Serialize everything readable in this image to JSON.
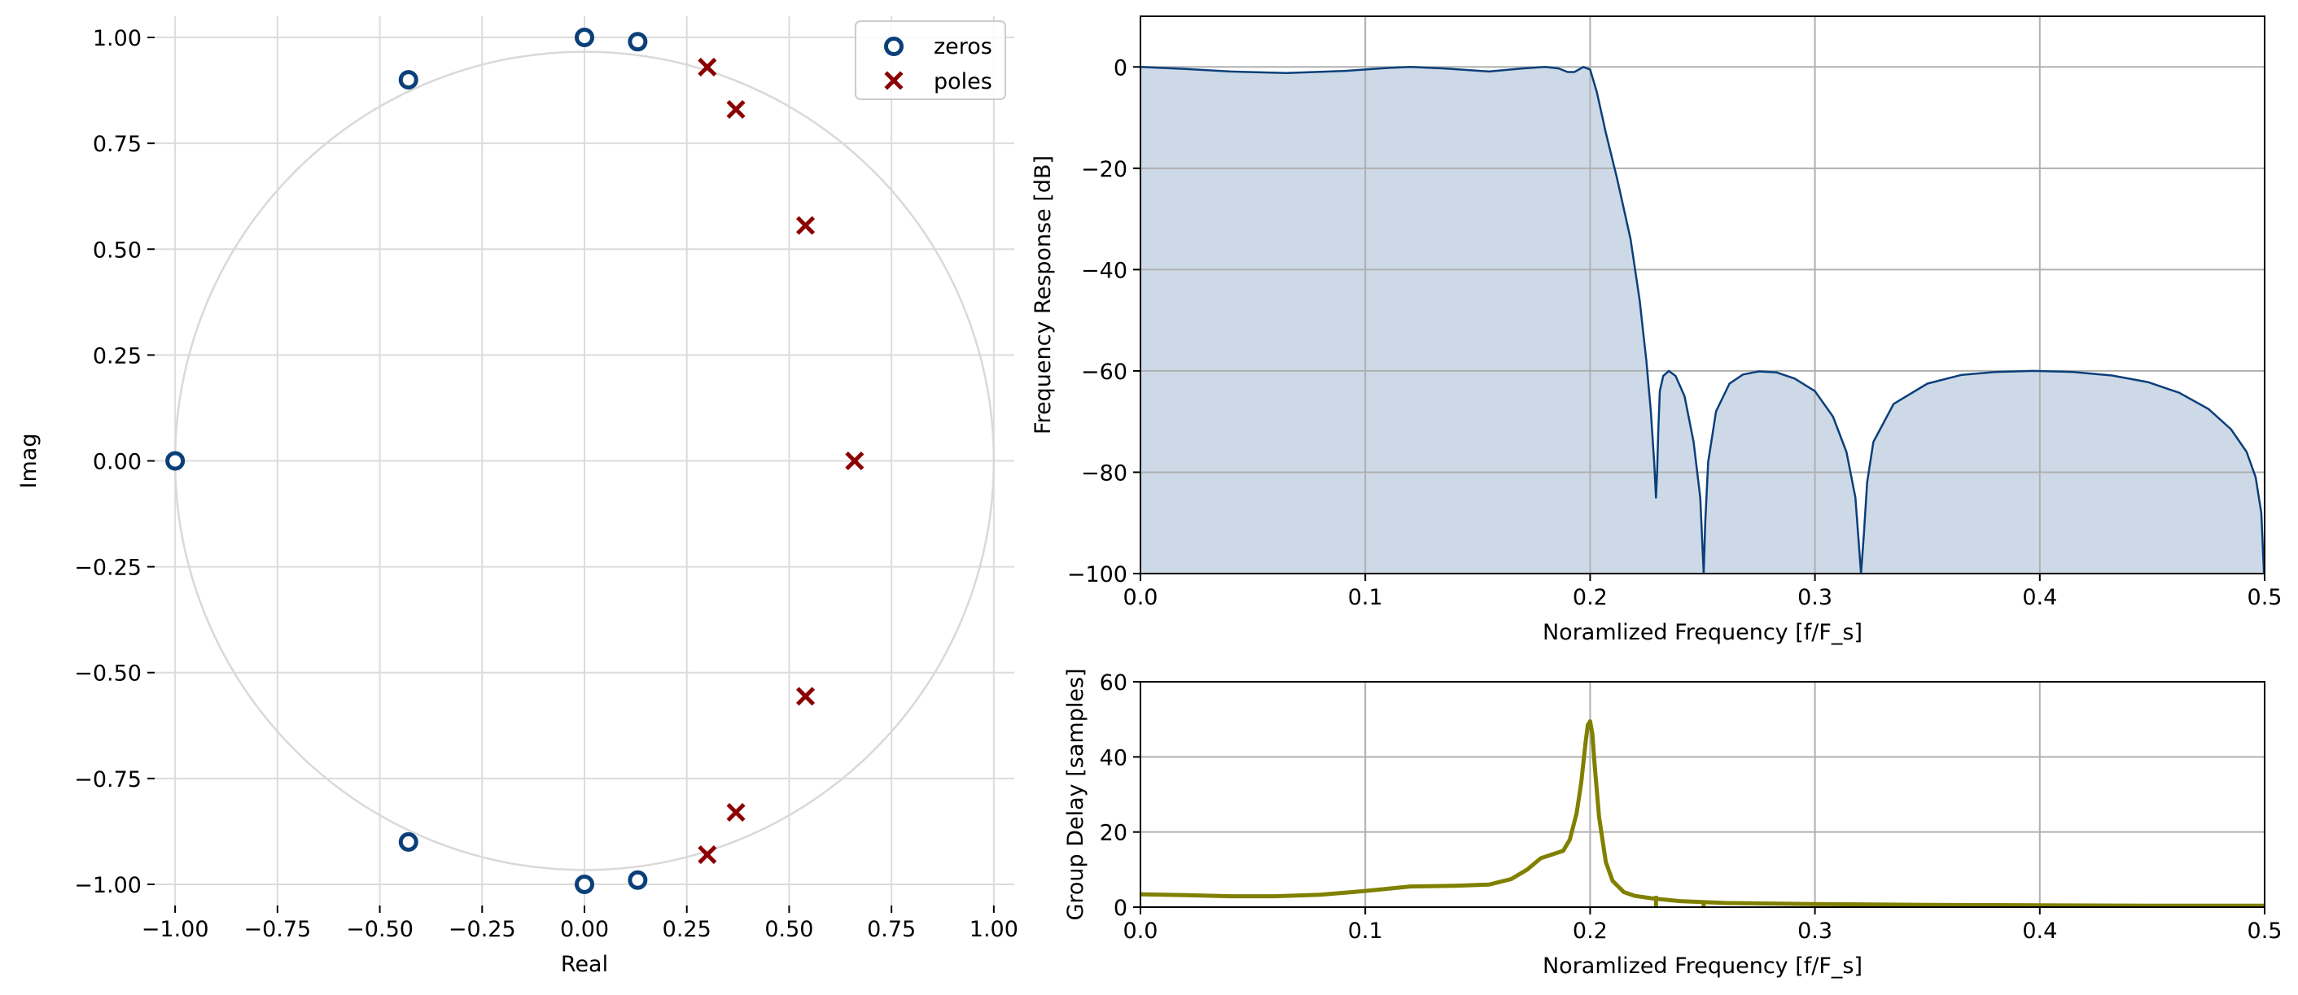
{
  "chart_data": [
    {
      "type": "scatter",
      "title": "",
      "xlabel": "Real",
      "ylabel": "Imag",
      "xlim": [
        -1.05,
        1.05
      ],
      "ylim": [
        -1.05,
        1.05
      ],
      "xticks": [
        -1.0,
        -0.75,
        -0.5,
        -0.25,
        0.0,
        0.25,
        0.5,
        0.75,
        1.0
      ],
      "xtick_labels": [
        "−1.00",
        "−0.75",
        "−0.50",
        "−0.25",
        "0.00",
        "0.25",
        "0.50",
        "0.75",
        "1.00"
      ],
      "yticks": [
        1.0,
        0.75,
        0.5,
        0.25,
        0.0,
        -0.25,
        -0.5,
        -0.75,
        -1.0
      ],
      "ytick_labels": [
        "1.00",
        "0.75",
        "0.50",
        "0.25",
        "0.00",
        "−0.25",
        "−0.50",
        "−0.75",
        "−1.00"
      ],
      "grid": true,
      "unit_circle": true,
      "legend_position": "top-right",
      "series": [
        {
          "name": "zeros",
          "marker": "circle",
          "color": "#0b3f7a",
          "points": [
            [
              0.0,
              1.0
            ],
            [
              0.13,
              0.99
            ],
            [
              -0.43,
              0.9
            ],
            [
              -1.0,
              0.0
            ],
            [
              -0.43,
              -0.9
            ],
            [
              0.0,
              -1.0
            ],
            [
              0.13,
              -0.99
            ]
          ]
        },
        {
          "name": "poles",
          "marker": "x",
          "color": "#8b0000",
          "points": [
            [
              0.3,
              0.93
            ],
            [
              0.37,
              0.83
            ],
            [
              0.54,
              0.556
            ],
            [
              0.66,
              0.0
            ],
            [
              0.54,
              -0.556
            ],
            [
              0.37,
              -0.83
            ],
            [
              0.3,
              -0.93
            ]
          ]
        }
      ]
    },
    {
      "type": "area",
      "title": "",
      "xlabel": "Noramlized Frequency [f/F_s]",
      "ylabel": "Frequency Response [dB]",
      "xlim": [
        0.0,
        0.5
      ],
      "ylim": [
        -100,
        10
      ],
      "xticks": [
        0.0,
        0.1,
        0.2,
        0.3,
        0.4,
        0.5
      ],
      "xtick_labels": [
        "0.0",
        "0.1",
        "0.2",
        "0.3",
        "0.4",
        "0.5"
      ],
      "yticks": [
        0,
        -20,
        -40,
        -60,
        -80,
        -100
      ],
      "ytick_labels": [
        "0",
        "−20",
        "−40",
        "−60",
        "−80",
        "−100"
      ],
      "grid": true,
      "line_color": "#0b3f7a",
      "fill_color": "#cdd9e6",
      "x": [
        0.0,
        0.02,
        0.04,
        0.065,
        0.09,
        0.11,
        0.12,
        0.135,
        0.155,
        0.17,
        0.18,
        0.186,
        0.19,
        0.193,
        0.197,
        0.2,
        0.203,
        0.207,
        0.212,
        0.218,
        0.222,
        0.225,
        0.227,
        0.2285,
        0.2293,
        0.2298,
        0.2303,
        0.231,
        0.2325,
        0.235,
        0.238,
        0.242,
        0.246,
        0.249,
        0.2505,
        0.2512,
        0.2525,
        0.256,
        0.262,
        0.268,
        0.275,
        0.283,
        0.291,
        0.3,
        0.308,
        0.314,
        0.318,
        0.3205,
        0.3218,
        0.3232,
        0.326,
        0.335,
        0.35,
        0.365,
        0.38,
        0.397,
        0.415,
        0.432,
        0.448,
        0.462,
        0.475,
        0.485,
        0.492,
        0.496,
        0.4985,
        0.4997
      ],
      "y": [
        0.0,
        -0.4,
        -0.9,
        -1.2,
        -0.8,
        -0.2,
        0.0,
        -0.3,
        -0.9,
        -0.3,
        0.0,
        -0.3,
        -1.0,
        -1.0,
        0.0,
        -0.5,
        -5,
        -13,
        -22,
        -34,
        -46,
        -58,
        -68,
        -78,
        -85,
        -80,
        -72,
        -64,
        -61,
        -60,
        -61,
        -65,
        -74,
        -85,
        -100,
        -90,
        -78,
        -68,
        -62.5,
        -60.7,
        -60.1,
        -60.3,
        -61.5,
        -64,
        -69,
        -76,
        -85,
        -100,
        -92,
        -82,
        -74,
        -66.5,
        -62.5,
        -60.8,
        -60.2,
        -60.0,
        -60.2,
        -60.9,
        -62.2,
        -64.3,
        -67.5,
        -71.5,
        -76,
        -81,
        -88,
        -100
      ]
    },
    {
      "type": "line",
      "title": "",
      "xlabel": "Noramlized Frequency [f/F_s]",
      "ylabel": "Group Delay [samples]",
      "xlim": [
        0.0,
        0.5
      ],
      "ylim": [
        0,
        60
      ],
      "xticks": [
        0.0,
        0.1,
        0.2,
        0.3,
        0.4,
        0.5
      ],
      "xtick_labels": [
        "0.0",
        "0.1",
        "0.2",
        "0.3",
        "0.4",
        "0.5"
      ],
      "yticks": [
        60,
        40,
        20,
        0
      ],
      "ytick_labels": [
        "60",
        "40",
        "20",
        "0"
      ],
      "grid": true,
      "line_color": "#808000",
      "x": [
        0.0,
        0.02,
        0.04,
        0.06,
        0.08,
        0.1,
        0.12,
        0.14,
        0.155,
        0.165,
        0.172,
        0.178,
        0.183,
        0.188,
        0.191,
        0.194,
        0.196,
        0.198,
        0.199,
        0.2,
        0.201,
        0.202,
        0.204,
        0.207,
        0.21,
        0.215,
        0.22,
        0.228,
        0.24,
        0.26,
        0.3,
        0.35,
        0.4,
        0.45,
        0.5
      ],
      "y": [
        3.4,
        3.2,
        2.9,
        2.9,
        3.3,
        4.3,
        5.5,
        5.7,
        6.0,
        7.5,
        10.0,
        13.0,
        14.0,
        15.0,
        18.0,
        25.0,
        33.0,
        44.0,
        48.5,
        49.5,
        46.0,
        38.0,
        24.0,
        12.0,
        7.0,
        4.0,
        3.0,
        2.3,
        1.6,
        1.1,
        0.8,
        0.6,
        0.5,
        0.4,
        0.4
      ],
      "spikes": [
        {
          "x": 0.2293,
          "y": 3.0
        },
        {
          "x": 0.2505,
          "y": 1.5
        },
        {
          "x": 0.3218,
          "y": 1.0
        }
      ]
    }
  ]
}
